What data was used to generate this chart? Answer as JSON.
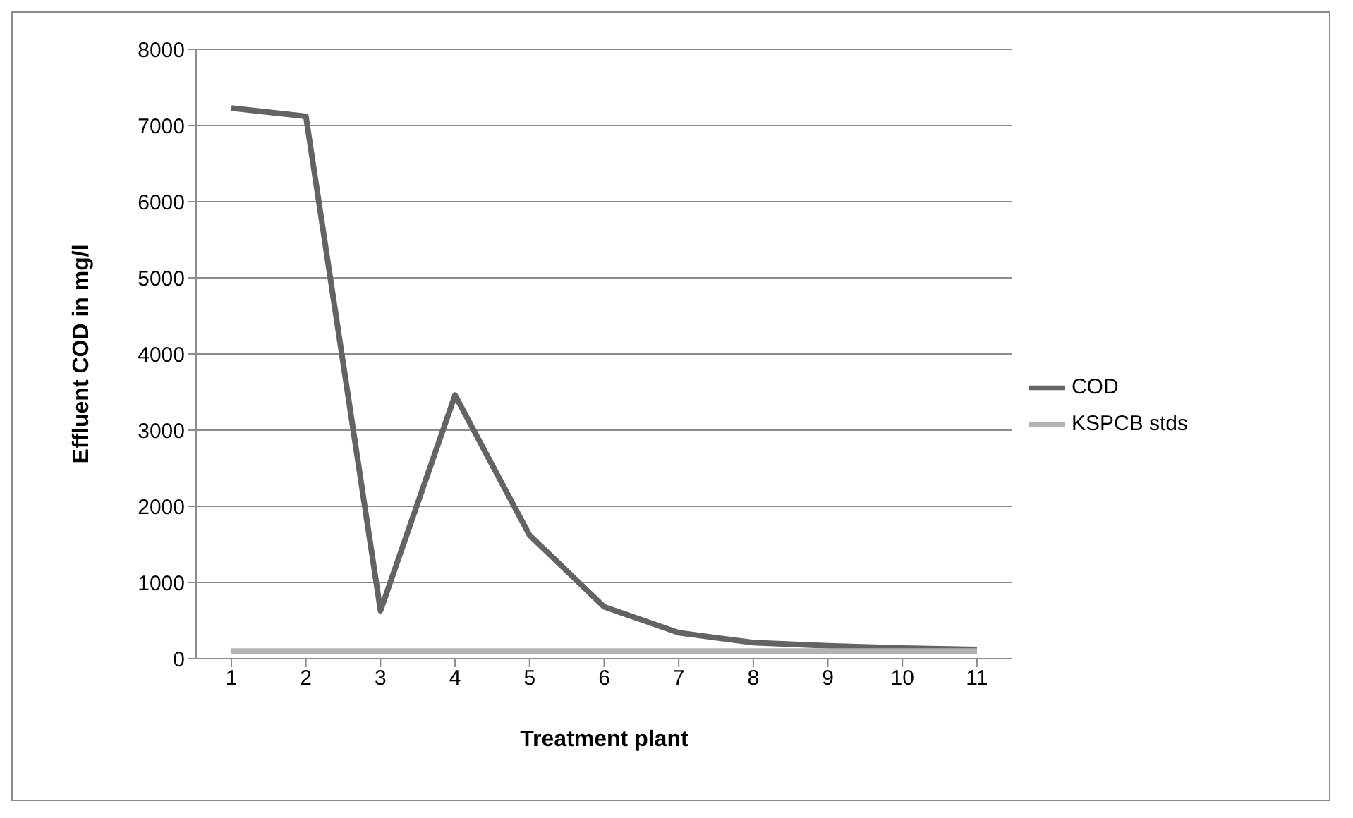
{
  "chart_data": {
    "type": "line",
    "xlabel": "Treatment plant",
    "ylabel": "Effluent COD in mg/l",
    "categories": [
      "1",
      "2",
      "3",
      "4",
      "5",
      "6",
      "7",
      "8",
      "9",
      "10",
      "11"
    ],
    "series": [
      {
        "name": "COD",
        "color": "#636363",
        "values": [
          7230,
          7120,
          630,
          3460,
          1620,
          680,
          340,
          210,
          170,
          140,
          120
        ]
      },
      {
        "name": "KSPCB stds",
        "color": "#b3b3b3",
        "values": [
          100,
          100,
          100,
          100,
          100,
          100,
          100,
          100,
          100,
          100,
          100
        ]
      }
    ],
    "ylim": [
      0,
      8000
    ],
    "yticks": [
      0,
      1000,
      2000,
      3000,
      4000,
      5000,
      6000,
      7000,
      8000
    ],
    "grid": "y",
    "legend": "right",
    "marker": "none",
    "line_style": "solid"
  }
}
